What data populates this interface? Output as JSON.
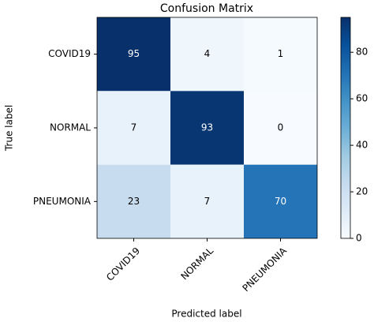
{
  "chart_data": {
    "type": "heatmap",
    "title": "Confusion Matrix",
    "x_label": "Predicted label",
    "y_label": "True label",
    "x_categories": [
      "COVID19",
      "NORMAL",
      "PNEUMONIA"
    ],
    "y_categories": [
      "COVID19",
      "NORMAL",
      "PNEUMONIA"
    ],
    "values": [
      [
        95,
        4,
        1
      ],
      [
        7,
        93,
        0
      ],
      [
        23,
        7,
        70
      ]
    ],
    "colormap": [
      "#f7fbff",
      "#deebf7",
      "#c6dbef",
      "#9ecae1",
      "#6baed6",
      "#4292c6",
      "#2171b5",
      "#08519c",
      "#08306b"
    ],
    "clim": [
      0,
      95
    ],
    "cticks": [
      0,
      20,
      40,
      60,
      80
    ]
  }
}
